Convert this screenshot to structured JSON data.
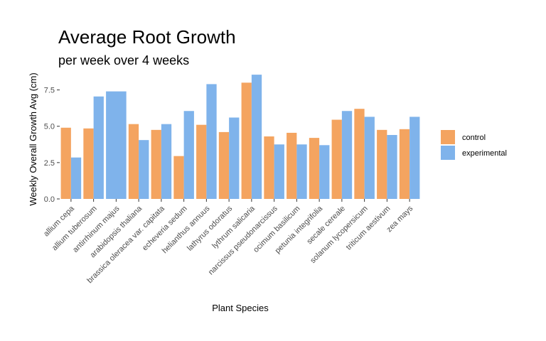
{
  "chart_data": {
    "type": "bar",
    "title": "Average Root Growth",
    "subtitle": "per week over 4 weeks",
    "xlabel": "Plant Species",
    "ylabel": "Weekly Overall Growth Avg (cm)",
    "ylim": [
      0,
      8.8
    ],
    "yticks": [
      0,
      2.5,
      5,
      7.5
    ],
    "ytick_labels": [
      "0.0",
      "2.5",
      "5.0",
      "7.5"
    ],
    "grid": false,
    "legend_position": "right",
    "categories": [
      "allium cepa",
      "allium tuberosum",
      "antirrhinum majus",
      "arabidopsis thaliana",
      "brassica oleracea var. capitata",
      "echeveria sedum",
      "helianthus annuus",
      "lathyrus odoratus",
      "lythrum salicaria",
      "narcissus pseudonarcissus",
      "ocimum basilicum",
      "petunia integrifolia",
      "secale cereale",
      "solanum lycopersicum",
      "triticum aestivum",
      "zea mays"
    ],
    "series": [
      {
        "name": "control",
        "color": "#F4A460",
        "values": [
          4.9,
          4.85,
          null,
          5.15,
          4.75,
          2.95,
          5.1,
          4.6,
          8.0,
          4.3,
          4.55,
          4.2,
          5.45,
          6.2,
          4.75,
          4.8
        ]
      },
      {
        "name": "experimental",
        "color": "#7FB3EB",
        "values": [
          2.85,
          7.05,
          7.4,
          4.05,
          5.15,
          6.05,
          7.9,
          5.6,
          8.55,
          3.75,
          3.75,
          3.7,
          6.05,
          5.65,
          4.4,
          5.65
        ]
      }
    ]
  }
}
